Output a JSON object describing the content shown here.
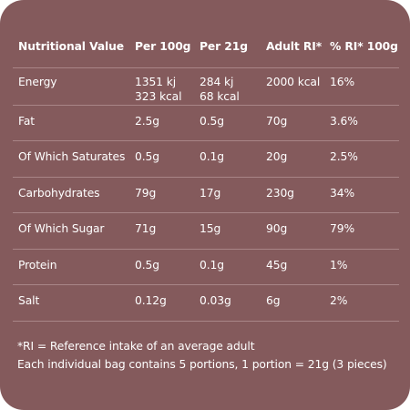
{
  "table": {
    "headers": [
      "Nutritional Value",
      "Per 100g",
      "Per 21g",
      "Adult RI*",
      "% RI* 100g"
    ],
    "rows": [
      {
        "name": "Energy",
        "per100": [
          "1351 kj",
          "323 kcal"
        ],
        "per21": [
          "284 kj",
          "68 kcal"
        ],
        "ri": "2000 kcal",
        "pct": "16%"
      },
      {
        "name": "Fat",
        "per100": [
          "2.5g"
        ],
        "per21": [
          "0.5g"
        ],
        "ri": "70g",
        "pct": "3.6%"
      },
      {
        "name": "Of Which Saturates",
        "per100": [
          "0.5g"
        ],
        "per21": [
          "0.1g"
        ],
        "ri": "20g",
        "pct": "2.5%"
      },
      {
        "name": "Carbohydrates",
        "per100": [
          "79g"
        ],
        "per21": [
          "17g"
        ],
        "ri": "230g",
        "pct": "34%"
      },
      {
        "name": "Of Which Sugar",
        "per100": [
          "71g"
        ],
        "per21": [
          "15g"
        ],
        "ri": "90g",
        "pct": "79%"
      },
      {
        "name": "Protein",
        "per100": [
          "0.5g"
        ],
        "per21": [
          "0.1g"
        ],
        "ri": "45g",
        "pct": "1%"
      },
      {
        "name": "Salt",
        "per100": [
          "0.12g"
        ],
        "per21": [
          "0.03g"
        ],
        "ri": "6g",
        "pct": "2%"
      }
    ]
  },
  "footnotes": [
    "*RI = Reference intake of an average adult",
    "Each individual bag contains 5 portions, 1 portion = 21g (3 pieces)"
  ],
  "colors": {
    "background": "#845a5c",
    "text": "#ffffff",
    "divider": "#a98587"
  }
}
